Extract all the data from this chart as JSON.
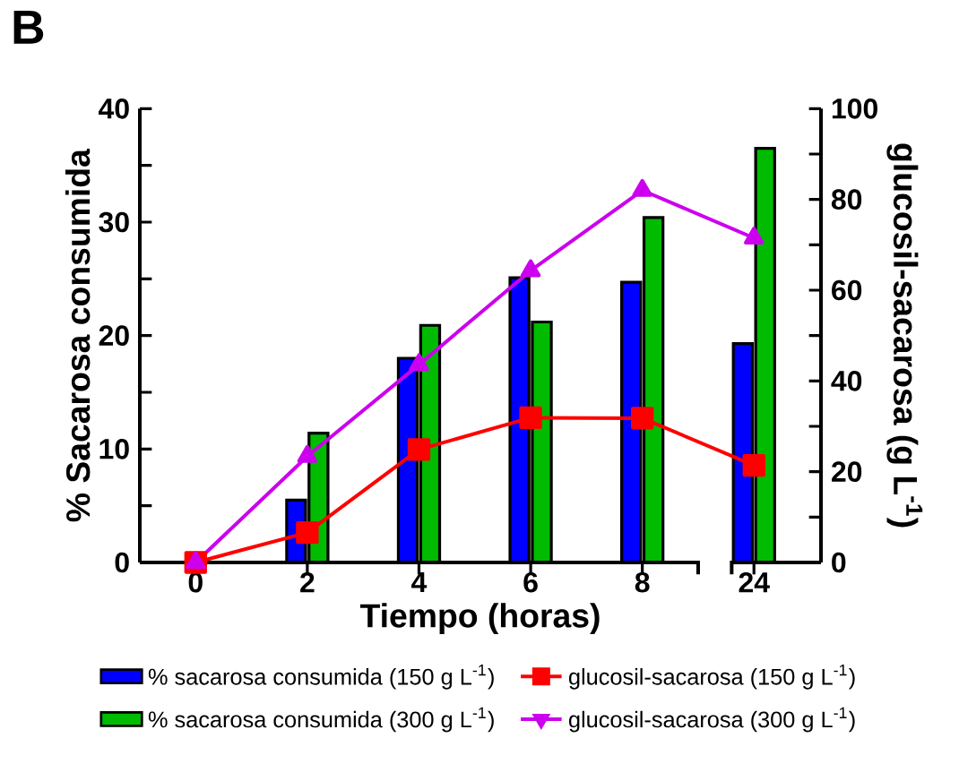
{
  "chart_data": {
    "type": "bar",
    "title": "B",
    "categories": [
      "0",
      "2",
      "4",
      "6",
      "8",
      "24"
    ],
    "xlabel": "Tiempo (horas)",
    "ylabel": "% Sacarosa consumida",
    "y2label": "glucosil-sacarosa (g L$^{-1}$)",
    "ylim": [
      0,
      40
    ],
    "yticks": [
      0,
      {
        "value": 5,
        "label": null
      },
      10,
      {
        "value": 15,
        "label": null
      },
      20,
      {
        "value": 25,
        "label": null
      },
      30,
      {
        "value": 35,
        "label": null
      },
      40
    ],
    "y2lim": [
      0,
      100
    ],
    "y2ticks": [
      0,
      {
        "value": 10,
        "label": null
      },
      20,
      {
        "value": 30,
        "label": null
      },
      40,
      {
        "value": 50,
        "label": null
      },
      60,
      {
        "value": 70,
        "label": null
      },
      80,
      {
        "value": 90,
        "label": null
      },
      100
    ],
    "legend": "bottom",
    "series": [
      {
        "name": "% sacarosa consumida (150 g L$^{-1}$)",
        "color": "#0000ff",
        "values": [
          0,
          5.5,
          18.0,
          25.1,
          24.7,
          19.3
        ]
      },
      {
        "name": "% sacarosa consumida (300 g L$^{-1}$)",
        "color": "#00bb00",
        "values": [
          0,
          11.4,
          20.9,
          21.2,
          30.4,
          36.5
        ]
      },
      {
        "name": "glucosil-sacarosa (150 g L$^{-1}$)",
        "type": "line",
        "axis": "y2",
        "marker": "square",
        "color": "#ff0000",
        "values": [
          0,
          6.6,
          24.9,
          31.9,
          31.8,
          21.4
        ]
      },
      {
        "name": "glucosil-sacarosa (300 g L$^{-1}$)",
        "type": "line",
        "axis": "y2",
        "marker": "triangle",
        "color": "#cc00ee",
        "values": [
          0,
          23.4,
          43.6,
          64.3,
          82.0,
          71.5
        ]
      }
    ]
  }
}
